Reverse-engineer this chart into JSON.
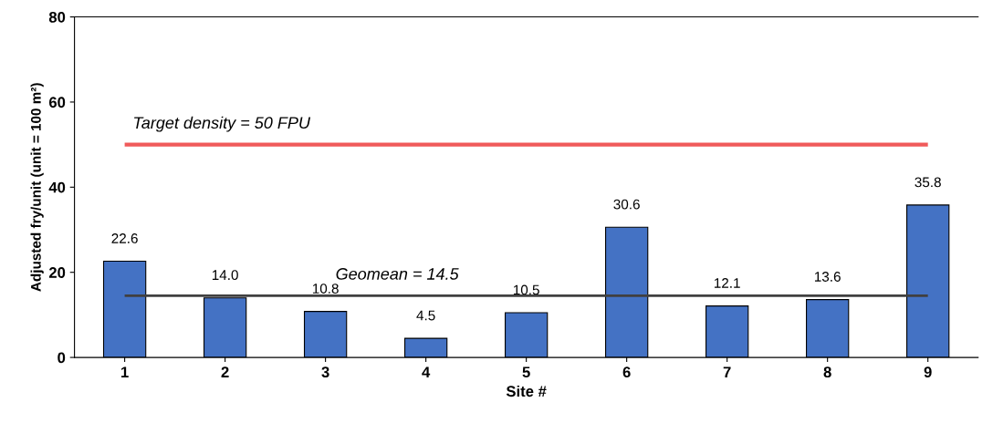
{
  "chart_data": {
    "type": "bar",
    "xlabel": "Site #",
    "ylabel": "Adjusted fry/unit (unit = 100 m²)",
    "categories": [
      "1",
      "2",
      "3",
      "4",
      "5",
      "6",
      "7",
      "8",
      "9"
    ],
    "values": [
      22.6,
      14.0,
      10.8,
      4.5,
      10.5,
      30.6,
      12.1,
      13.6,
      35.8
    ],
    "value_labels": [
      "22.6",
      "14.0",
      "10.8",
      "4.5",
      "10.5",
      "30.6",
      "12.1",
      "13.6",
      "35.8"
    ],
    "color": "#4472c4",
    "ylim": [
      0,
      80
    ],
    "yticks": [
      0,
      20,
      40,
      60,
      80
    ],
    "grid": false,
    "legend": false,
    "ref_lines": [
      {
        "axis": "y",
        "value": 50,
        "label": "Target density = 50 FPU",
        "color": "#f05a5a"
      },
      {
        "axis": "y",
        "value": 14.5,
        "label": "Geomean = 14.5",
        "color": "#404040"
      }
    ]
  }
}
